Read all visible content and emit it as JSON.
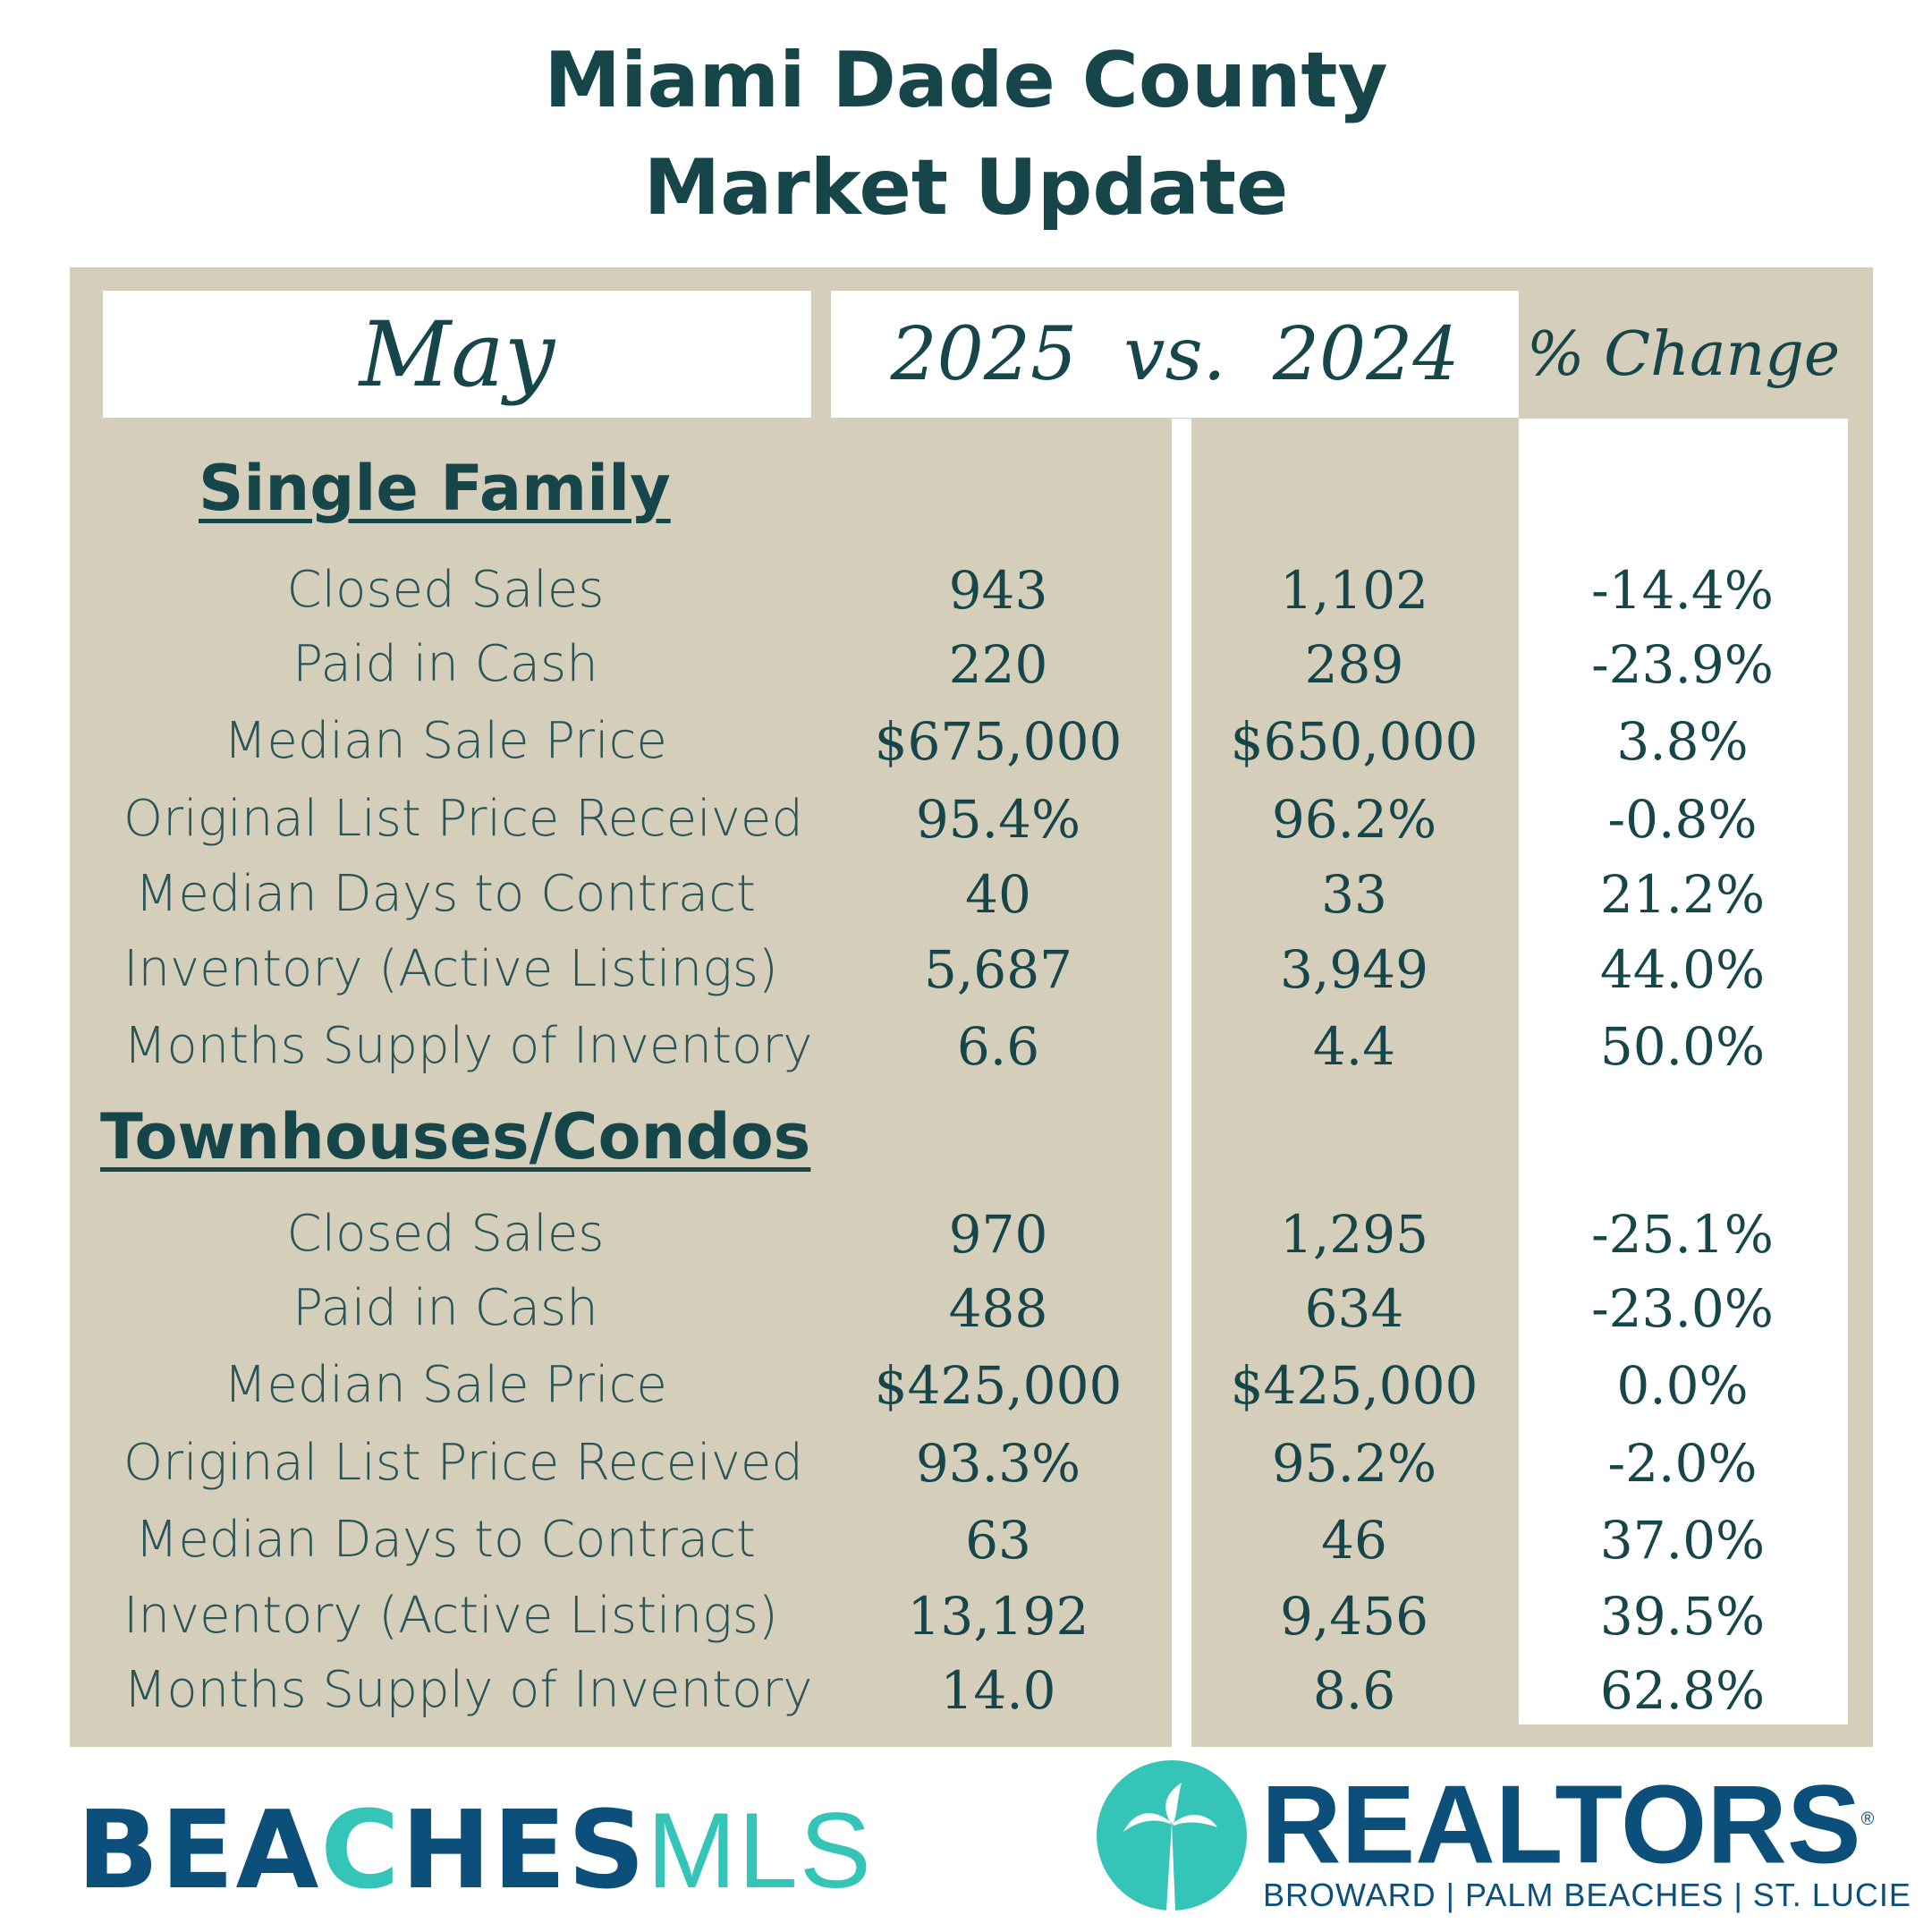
{
  "title": {
    "line1": "Miami Dade County",
    "line2": "Market Update"
  },
  "header": {
    "month": "May",
    "comparison": "2025  vs.  2024",
    "change": "% Change"
  },
  "sections": [
    {
      "name": "Single Family",
      "rows": [
        {
          "label": "Closed Sales",
          "y2025": "943",
          "y2024": "1,102",
          "change": "-14.4%"
        },
        {
          "label": "Paid in Cash",
          "y2025": "220",
          "y2024": "289",
          "change": "-23.9%"
        },
        {
          "label": "Median Sale Price",
          "y2025": "$675,000",
          "y2024": "$650,000",
          "change": "3.8%"
        },
        {
          "label": "Original List Price Received",
          "y2025": "95.4%",
          "y2024": "96.2%",
          "change": "-0.8%"
        },
        {
          "label": "Median Days to Contract",
          "y2025": "40",
          "y2024": "33",
          "change": "21.2%"
        },
        {
          "label": "Inventory (Active Listings)",
          "y2025": "5,687",
          "y2024": "3,949",
          "change": "44.0%"
        },
        {
          "label": "Months Supply of Inventory",
          "y2025": "6.6",
          "y2024": "4.4",
          "change": "50.0%"
        }
      ]
    },
    {
      "name": "Townhouses/Condos",
      "rows": [
        {
          "label": "Closed Sales",
          "y2025": "970",
          "y2024": "1,295",
          "change": "-25.1%"
        },
        {
          "label": "Paid in Cash",
          "y2025": "488",
          "y2024": "634",
          "change": "-23.0%"
        },
        {
          "label": "Median Sale Price",
          "y2025": "$425,000",
          "y2024": "$425,000",
          "change": "0.0%"
        },
        {
          "label": "Original List Price Received",
          "y2025": "93.3%",
          "y2024": "95.2%",
          "change": "-2.0%"
        },
        {
          "label": "Median Days to Contract",
          "y2025": "63",
          "y2024": "46",
          "change": "37.0%"
        },
        {
          "label": "Inventory (Active Listings)",
          "y2025": "13,192",
          "y2024": "9,456",
          "change": "39.5%"
        },
        {
          "label": "Months Supply of Inventory",
          "y2025": "14.0",
          "y2024": "8.6",
          "change": "62.8%"
        }
      ]
    }
  ],
  "logos": {
    "beaches": {
      "part1": "BEA",
      "wave": "C",
      "part2": "HES",
      "mls": "MLS"
    },
    "realtors": {
      "name": "REALTORS",
      "mark": "®",
      "subtitle": "BROWARD | PALM BEACHES | ST. LUCIE"
    }
  },
  "colors": {
    "text": "#17464a",
    "panel": "#d5cebb",
    "brand_blue": "#0b4f7a",
    "brand_teal": "#35c4b8"
  }
}
